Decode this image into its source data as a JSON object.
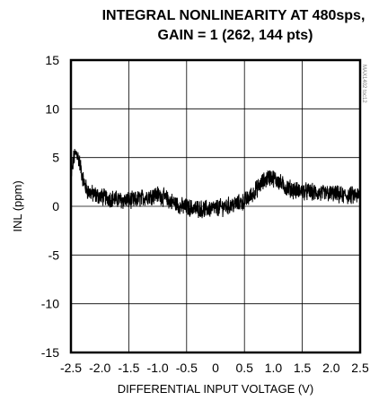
{
  "chart_data": {
    "type": "line",
    "title": "INTEGRAL NONLINEARITY AT 480sps,",
    "subtitle": "GAIN = 1 (262, 144 pts)",
    "xlabel": "DIFFERENTIAL INPUT VOLTAGE (V)",
    "ylabel": "INL (ppm)",
    "xlim": [
      -2.5,
      2.5
    ],
    "ylim": [
      -15,
      15
    ],
    "x_ticks": [
      "-2.5",
      "-2.0",
      "-1.5",
      "-1.0",
      "-0.5",
      "0",
      "0.5",
      "1.0",
      "1.5",
      "2.0",
      "2.5"
    ],
    "y_ticks": [
      "15",
      "10",
      "5",
      "0",
      "-5",
      "-10",
      "-15"
    ],
    "grid": true,
    "figure_id": "MAX1402 toc12",
    "series": [
      {
        "x": [
          -2.5,
          -2.45,
          -2.4,
          -2.35,
          -2.3,
          -2.25,
          -2.2,
          -2.1,
          -2.0,
          -1.8,
          -1.6,
          -1.4,
          -1.2,
          -1.0,
          -0.8,
          -0.6,
          -0.4,
          -0.2,
          0.0,
          0.2,
          0.4,
          0.5,
          0.6,
          0.7,
          0.8,
          0.9,
          0.95,
          1.0,
          1.1,
          1.2,
          1.4,
          1.6,
          1.8,
          2.0,
          2.2,
          2.4,
          2.5
        ],
        "y": [
          3.0,
          5.0,
          5.5,
          4.5,
          3.0,
          2.0,
          1.5,
          1.2,
          1.0,
          0.8,
          0.6,
          0.6,
          1.0,
          1.2,
          0.6,
          0.0,
          -0.2,
          -0.3,
          -0.2,
          0.0,
          0.3,
          0.5,
          1.0,
          1.7,
          2.4,
          2.9,
          3.0,
          2.9,
          2.5,
          2.0,
          1.6,
          1.5,
          1.3,
          1.3,
          1.1,
          1.1,
          1.1
        ],
        "band": 0.8
      }
    ]
  }
}
